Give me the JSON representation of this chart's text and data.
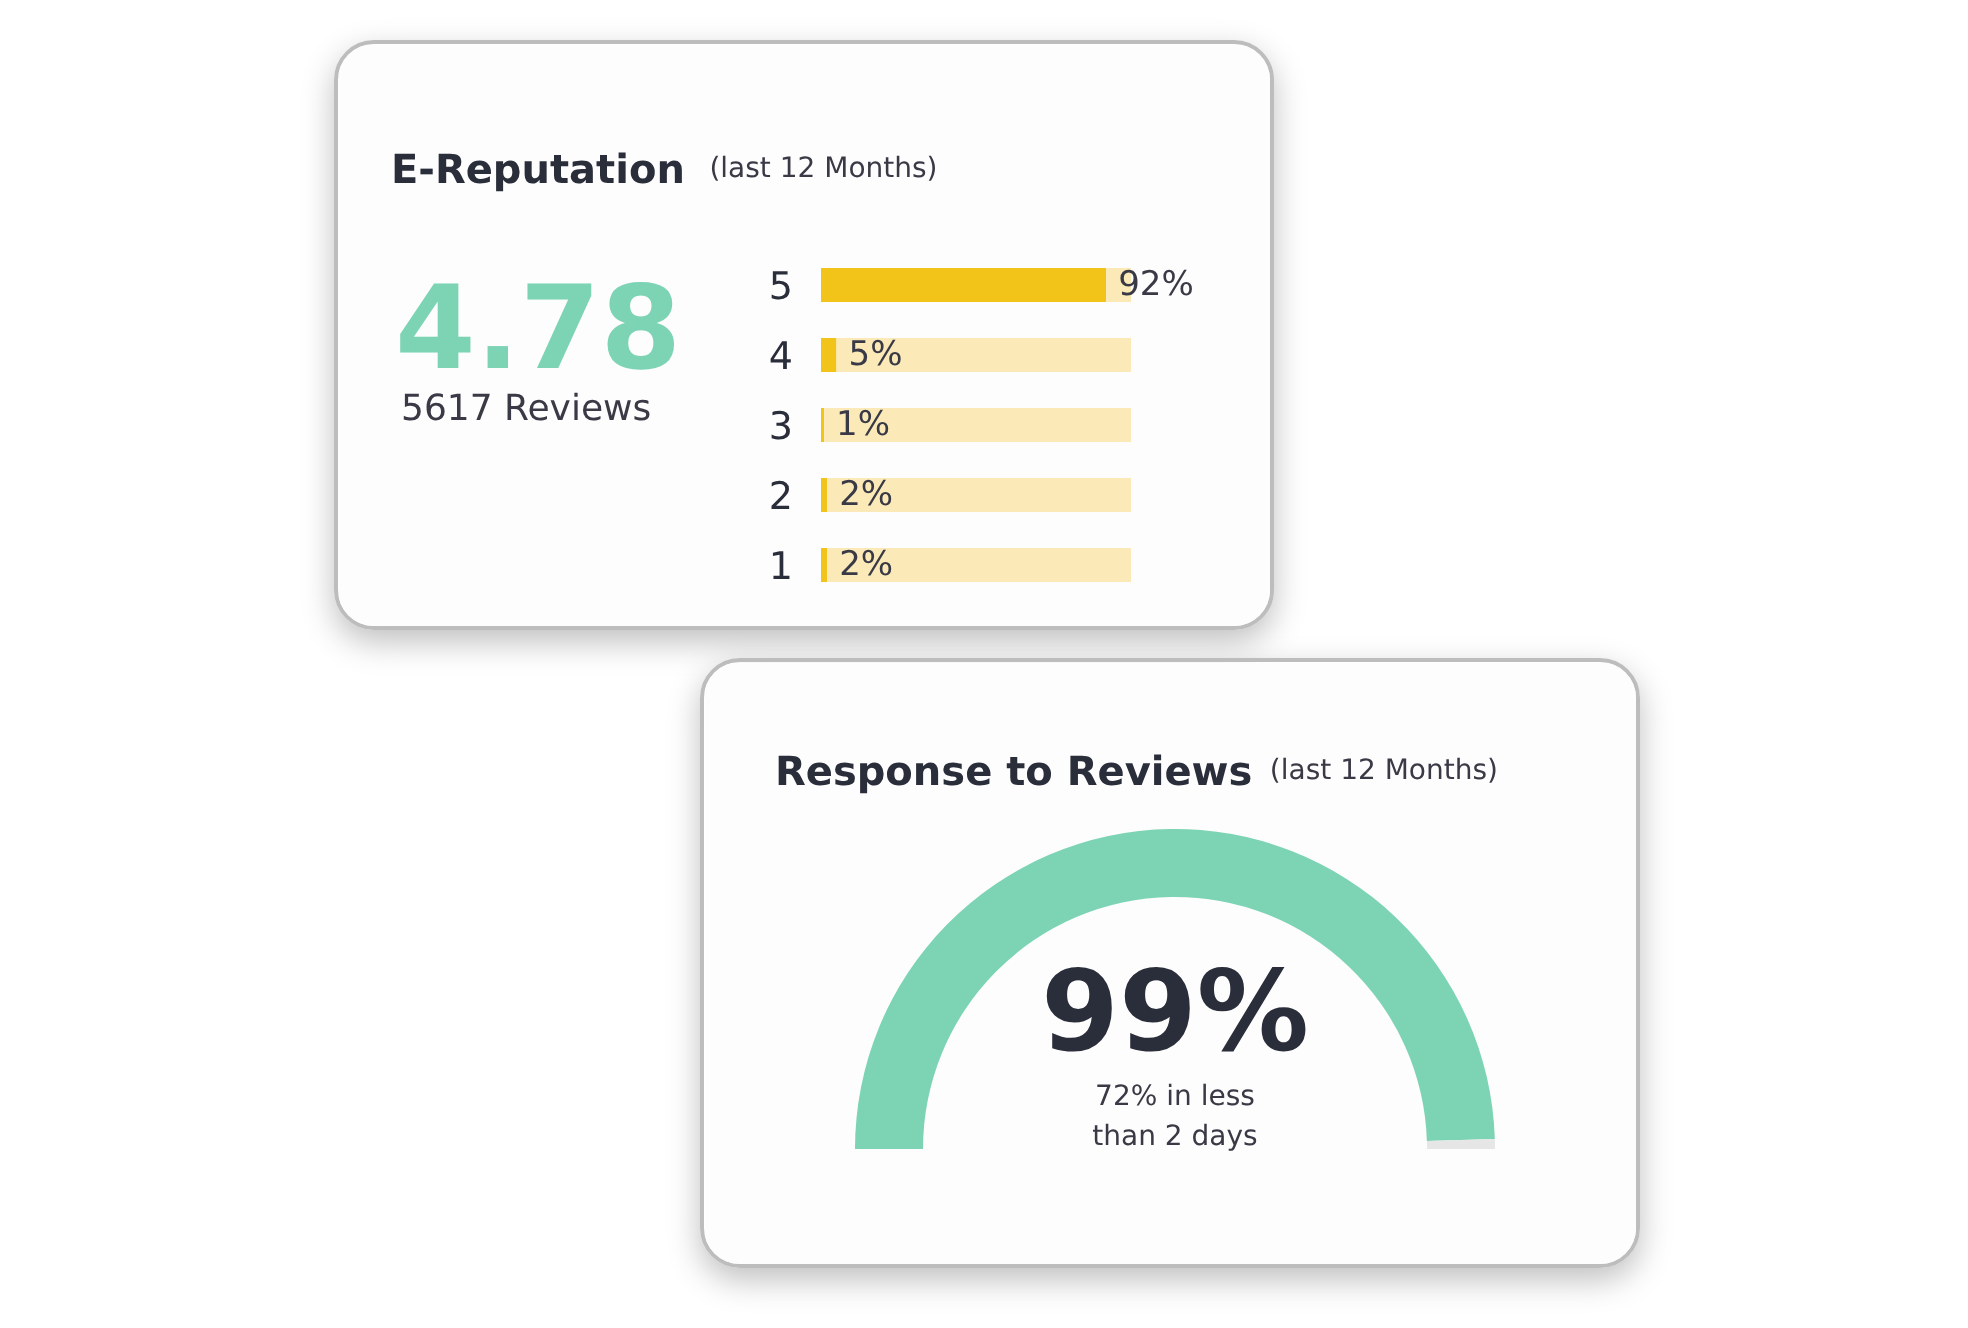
{
  "chart_data": [
    {
      "type": "bar",
      "orientation": "horizontal",
      "stacked": true,
      "title": "E-Reputation",
      "subtitle": "(last 12 Months)",
      "categories": [
        "5",
        "4",
        "3",
        "2",
        "1"
      ],
      "series": [
        {
          "color": "#f2c318",
          "values": [
            92,
            5,
            1,
            2,
            2
          ],
          "value_labels": [
            "92%",
            "5%",
            "1%",
            "2%",
            "2%"
          ]
        },
        {
          "color": "#fbeab8",
          "values": [
            8,
            95,
            99,
            98,
            98
          ]
        }
      ],
      "tick_labels": "y",
      "annotations": [
        "4.78",
        "5617 Reviews"
      ]
    },
    {
      "type": "donut",
      "title": "Response to Reviews",
      "subtitle": "(last 12 Months)",
      "categories": [
        null,
        null
      ],
      "values": [
        99,
        1
      ],
      "colors": [
        "#7dd4b4",
        "#e6e6e6"
      ],
      "value_labels": [
        "99%",
        null
      ],
      "annotations": [
        "72% in less than 2 days"
      ]
    }
  ]
}
